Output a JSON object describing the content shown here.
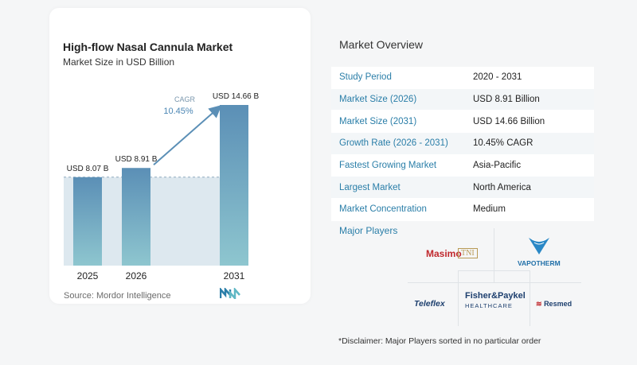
{
  "chart_data": {
    "type": "bar",
    "title": "High-flow Nasal Cannula Market",
    "subtitle": "Market Size in USD Billion",
    "categories": [
      "2025",
      "2026",
      "2031"
    ],
    "values": [
      8.07,
      8.91,
      14.66
    ],
    "data_labels": [
      "USD 8.07 B",
      "USD 8.91 B",
      "USD 14.66 B"
    ],
    "cagr_label": "CAGR",
    "cagr_value": "10.45%",
    "ylim": [
      0,
      14.66
    ],
    "colors": {
      "bar_top": "#5b8fb6",
      "bar_bottom": "#8ec6cf",
      "area": "#dde8ef",
      "arrow": "#5b8fb6"
    }
  },
  "source": "Source:  Mordor Intelligence",
  "overview": {
    "title": "Market Overview",
    "rows": [
      {
        "key": "Study Period",
        "value": "2020 - 2031"
      },
      {
        "key": "Market Size (2026)",
        "value": "USD 8.91 Billion"
      },
      {
        "key": "Market Size (2031)",
        "value": "USD 14.66 Billion"
      },
      {
        "key": "Growth Rate (2026 - 2031)",
        "value": "10.45% CAGR"
      },
      {
        "key": "Fastest Growing Market",
        "value": "Asia-Pacific"
      },
      {
        "key": "Largest Market",
        "value": "North America"
      },
      {
        "key": "Market Concentration",
        "value": "Medium"
      }
    ]
  },
  "players": {
    "title": "Major Players",
    "logos": [
      "Masimo",
      "TNI",
      "VAPOTHERM",
      "Fisher&Paykel",
      "HEALTHCARE",
      "Teleflex",
      "Resmed"
    ]
  },
  "disclaimer": "*Disclaimer: Major Players sorted in no particular order"
}
